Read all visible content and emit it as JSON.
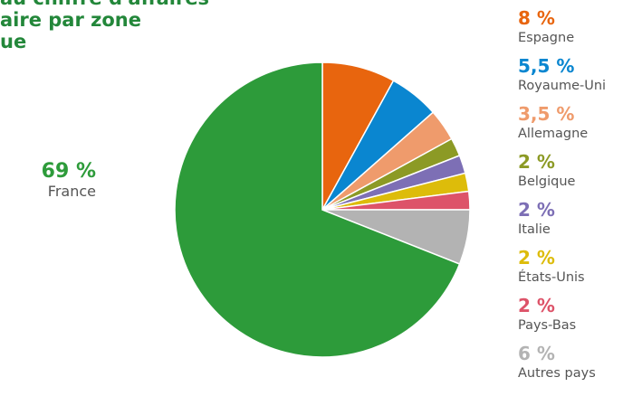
{
  "chart_data": {
    "type": "pie",
    "title": "au chiffre d'affaires\naire par zone\nue",
    "slices": [
      {
        "label": "Espagne",
        "value": 8,
        "display": "8 %",
        "color": "#e8650e"
      },
      {
        "label": "Royaume-Uni",
        "value": 5.5,
        "display": "5,5 %",
        "color": "#0a86d0"
      },
      {
        "label": "Allemagne",
        "value": 3.5,
        "display": "3,5 %",
        "color": "#ef9b6c"
      },
      {
        "label": "Belgique",
        "value": 2,
        "display": "2 %",
        "color": "#8c9a25"
      },
      {
        "label": "Italie",
        "value": 2,
        "display": "2 %",
        "color": "#7d6fb5"
      },
      {
        "label": "États-Unis",
        "value": 2,
        "display": "2 %",
        "color": "#ddbc0a"
      },
      {
        "label": "Pays-Bas",
        "value": 2,
        "display": "2 %",
        "color": "#dd5369"
      },
      {
        "label": "Autres pays",
        "value": 6,
        "display": "6 %",
        "color": "#b3b3b3"
      },
      {
        "label": "France",
        "value": 69,
        "display": "69 %",
        "color": "#2d9b3a"
      }
    ]
  },
  "legend": [
    {
      "pct": "8 %",
      "label": "Espagne",
      "color": "#e8650e"
    },
    {
      "pct": "5,5 %",
      "label": "Royaume-Uni",
      "color": "#0a86d0"
    },
    {
      "pct": "3,5 %",
      "label": "Allemagne",
      "color": "#ef9b6c"
    },
    {
      "pct": "2 %",
      "label": "Belgique",
      "color": "#8c9a25"
    },
    {
      "pct": "2 %",
      "label": "Italie",
      "color": "#7d6fb5"
    },
    {
      "pct": "2 %",
      "label": "États-Unis",
      "color": "#ddbc0a"
    },
    {
      "pct": "2 %",
      "label": "Pays-Bas",
      "color": "#dd5369"
    },
    {
      "pct": "6 %",
      "label": "Autres pays",
      "color": "#b3b3b3"
    }
  ],
  "france_callout": {
    "pct": "69 %",
    "label": "France",
    "color": "#2d9b3a"
  }
}
